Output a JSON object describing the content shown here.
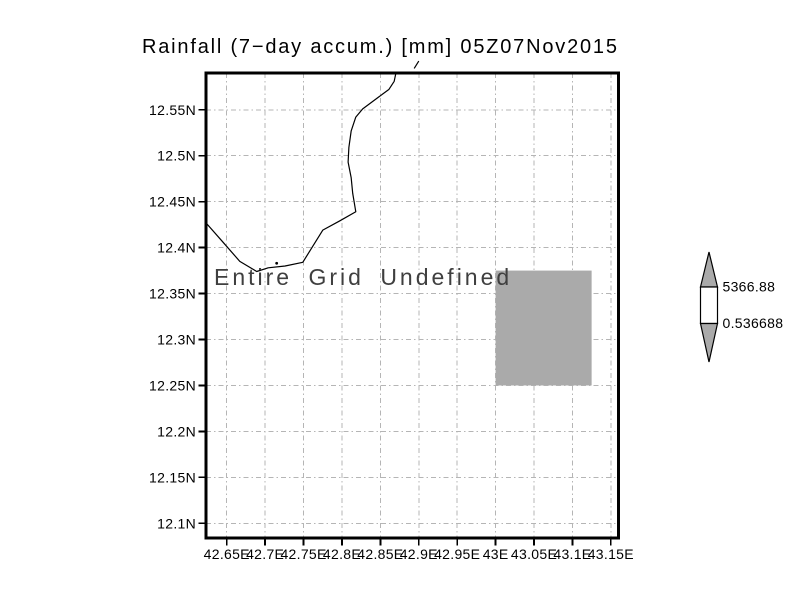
{
  "title": "Rainfall (7−day accum.) [mm] 05Z07Nov2015",
  "chart_data": {
    "type": "map",
    "title": "Rainfall (7−day accum.) [mm] 05Z07Nov2015",
    "annotation": "Entire Grid Undefined",
    "grid": {
      "style": "dash-dot",
      "color": "#b5b5b5",
      "visible": true
    },
    "x_axis": {
      "unit": "longitude_east",
      "min": 42.623,
      "max": 43.16,
      "tick_values": [
        42.65,
        42.7,
        42.75,
        42.8,
        42.85,
        42.9,
        42.95,
        43.0,
        43.05,
        43.1,
        43.15
      ],
      "tick_labels": [
        "42.65E",
        "42.7E",
        "42.75E",
        "42.8E",
        "42.85E",
        "42.9E",
        "42.95E",
        "43E",
        "43.05E",
        "43.1E",
        "43.15E"
      ]
    },
    "y_axis": {
      "unit": "latitude_north",
      "min": 12.084,
      "max": 12.59,
      "tick_values": [
        12.55,
        12.5,
        12.45,
        12.4,
        12.35,
        12.3,
        12.25,
        12.2,
        12.15,
        12.1
      ],
      "tick_labels": [
        "12.55N",
        "12.5N",
        "12.45N",
        "12.4N",
        "12.35N",
        "12.3N",
        "12.25N",
        "12.2N",
        "12.15N",
        "12.1N"
      ]
    },
    "coastline_lonlat": [
      [
        42.87,
        12.589
      ],
      [
        42.868,
        12.581
      ],
      [
        42.861,
        12.572
      ],
      [
        42.848,
        12.564
      ],
      [
        42.827,
        12.551
      ],
      [
        42.818,
        12.542
      ],
      [
        42.812,
        12.527
      ],
      [
        42.809,
        12.509
      ],
      [
        42.808,
        12.493
      ],
      [
        42.812,
        12.476
      ],
      [
        42.814,
        12.459
      ],
      [
        42.817,
        12.444
      ],
      [
        42.818,
        12.439
      ],
      [
        42.797,
        12.429
      ],
      [
        42.775,
        12.419
      ],
      [
        42.749,
        12.384
      ],
      [
        42.726,
        12.38
      ],
      [
        42.704,
        12.378
      ],
      [
        42.689,
        12.374
      ],
      [
        42.667,
        12.385
      ],
      [
        42.644,
        12.407
      ],
      [
        42.624,
        12.426
      ]
    ],
    "coastline_fragment_lonlat": [
      [
        42.894,
        12.595
      ],
      [
        42.9,
        12.603
      ]
    ],
    "island_dot_lonlat": [
      42.715,
      12.383
    ],
    "shaded_region": {
      "lon_min": 43.0,
      "lon_max": 43.125,
      "lat_min": 12.25,
      "lat_max": 12.375,
      "color": "#aaaaaa"
    },
    "colorbar": {
      "max_label": "5366.88",
      "min_label": "0.536688",
      "arrow_color": "#aaaaaa",
      "box_color": "#ffffff",
      "outline_color": "#000000"
    }
  },
  "colors": {
    "background": "#ffffff",
    "axis": "#000000",
    "grid": "#b5b5b5",
    "annotation_text": "#3f3f3f",
    "shaded": "#aaaaaa"
  }
}
